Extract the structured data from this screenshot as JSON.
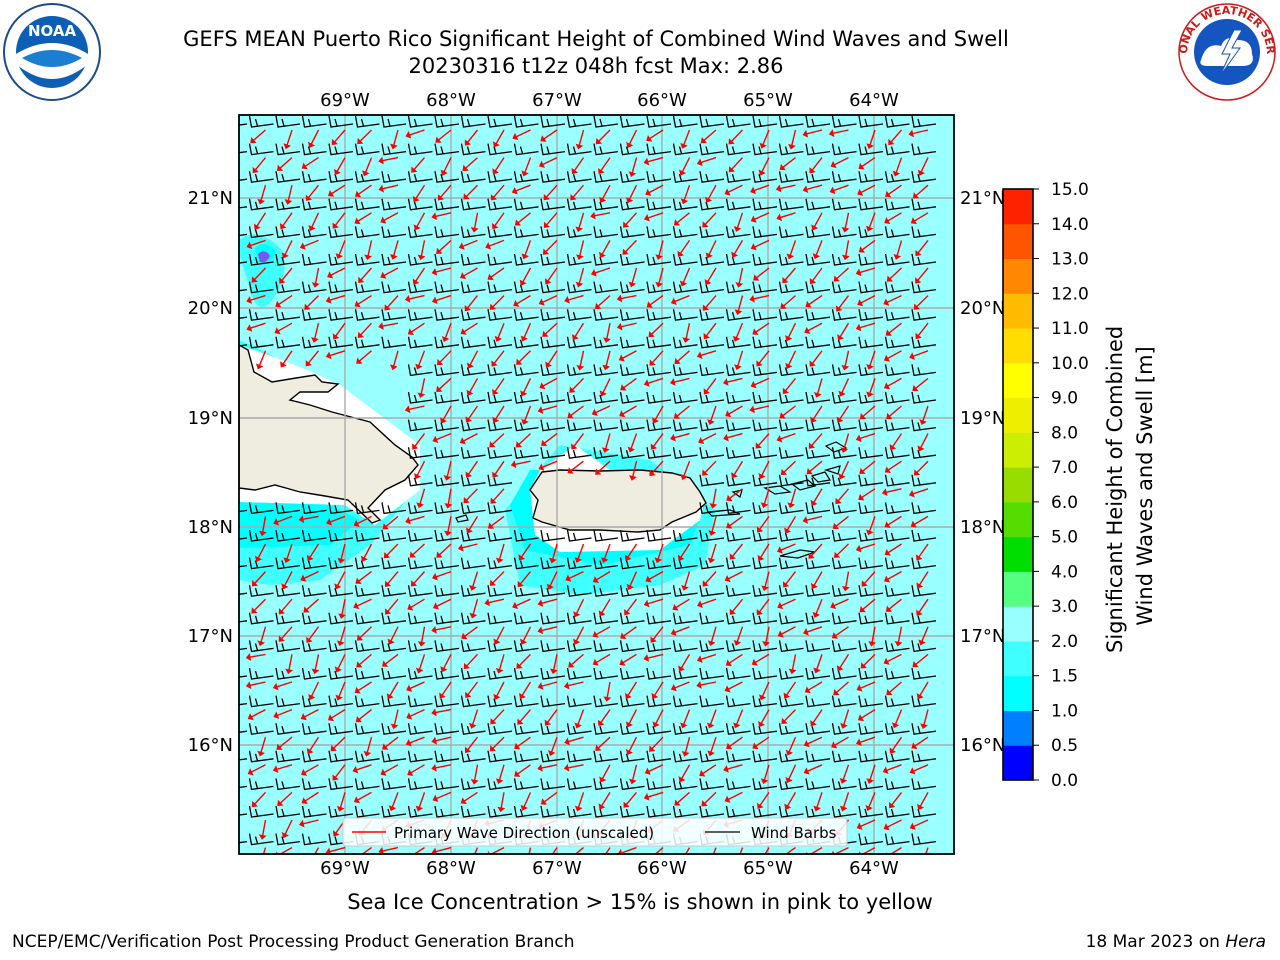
{
  "title": {
    "line1": "GEFS MEAN Puerto Rico Significant Height of Combined Wind Waves and Swell",
    "line2": "20230316 t12z 048h fcst   Max: 2.86"
  },
  "map": {
    "lon_labels": [
      "69°W",
      "68°W",
      "67°W",
      "66°W",
      "65°W",
      "64°W"
    ],
    "lat_labels": [
      "21°N",
      "20°N",
      "19°N",
      "18°N",
      "17°N",
      "16°N"
    ],
    "ocean_fill": "#99ffff",
    "land_fill": "#efece0",
    "barb_color": "#000000",
    "wave_arrow_color": "#ff0000"
  },
  "legend": {
    "wave_label": "Primary Wave Direction (unscaled)",
    "barb_label": "Wind Barbs"
  },
  "colorbar": {
    "title_line1": "Significant Height of Combined",
    "title_line2": "Wind Waves and Swell [m]",
    "ticks": [
      "0.0",
      "0.5",
      "1.0",
      "1.5",
      "2.0",
      "3.0",
      "4.0",
      "5.0",
      "6.0",
      "7.0",
      "8.0",
      "9.0",
      "10.0",
      "11.0",
      "12.0",
      "13.0",
      "14.0",
      "15.0"
    ],
    "colors": [
      "#0000ff",
      "#0080ff",
      "#00ffff",
      "#40ffff",
      "#99ffff",
      "#55ff80",
      "#00dd00",
      "#55dd00",
      "#99dd00",
      "#ccee00",
      "#eeee00",
      "#ffff00",
      "#ffdd00",
      "#ffbb00",
      "#ff8800",
      "#ff5500",
      "#ff2200"
    ]
  },
  "caption": "Sea Ice Concentration > 15% is shown in pink to yellow",
  "footer": {
    "left": "NCEP/EMC/Verification Post Processing Product Generation Branch",
    "right_prefix": "18 Mar 2023 on ",
    "right_machine": "Hera"
  },
  "logos": {
    "noaa_text": "NOAA",
    "nws_text": "NATIONAL WEATHER SERVICE"
  }
}
